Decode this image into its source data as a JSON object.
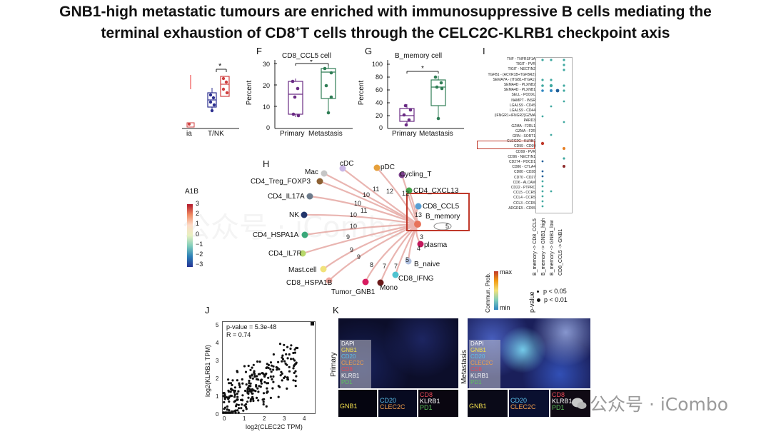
{
  "title": {
    "line1": "GNB1-high metastatic tumours are enriched with immunosuppressive B cells mediating the",
    "line2_a": "terminal exhaustion of CD8",
    "line2_sup": "+",
    "line2_b": "T cells through the CELC2C-KLRB1 checkpoint axis"
  },
  "panel_letters": {
    "F": "F",
    "G": "G",
    "H": "H",
    "I": "I",
    "J": "J",
    "K": "K"
  },
  "partial_left": {
    "star": "*",
    "xtick_cut": "ia",
    "xtick_tnk": "T/NK",
    "cut_label": "A1B",
    "colorbar_ticks": [
      "3",
      "2",
      "1",
      "0",
      "−1",
      "−2",
      "−3"
    ]
  },
  "panel_f": {
    "title": "CD8_CCL5 cell",
    "ylabel": "Percent",
    "yticks": [
      "30",
      "20",
      "10",
      "0"
    ],
    "xticks": [
      "Primary",
      "Metastasis"
    ],
    "star": "*"
  },
  "panel_g": {
    "title": "B_memory cell",
    "ylabel": "Percent",
    "yticks": [
      "100",
      "80",
      "60",
      "40",
      "20",
      "0"
    ],
    "xticks": [
      "Primary",
      "Metastasis"
    ],
    "star": "*"
  },
  "panel_h": {
    "nodes": [
      "cDC",
      "pDC",
      "Mac",
      "Cycling_T",
      "CD4_Treg_FOXP3",
      "CD4_CXCL13",
      "CD4_IL17A",
      "CD8_CCL5",
      "B_memory",
      "NK",
      "CD4_HSPA1A",
      "CD4_IL7R",
      "plasma",
      "B_naive",
      "Mast.cell",
      "CD8_IFNG",
      "CD8_HSPA1B",
      "Mono",
      "Tumor_GNB1"
    ],
    "edge_weights": [
      "10",
      "11",
      "12",
      "12",
      "10",
      "11",
      "10",
      "10",
      "13",
      "5",
      "3",
      "4",
      "5",
      "7",
      "7",
      "8",
      "9",
      "9",
      "9"
    ]
  },
  "panel_i": {
    "pairs": [
      "TNF - TNFRSF1A",
      "TIGIT - PVR",
      "TIGIT - NECTIN2",
      "TGFB1 - (ACVR1B+TGFBR2)",
      "SEMA7A - (ITGB1+ITGA1)",
      "SEMA4D - PLXNB2",
      "SEMA4D - PLXNB1",
      "SELL - PODXL",
      "NAMPT - INSR",
      "LGALS9 - CD45",
      "LGALS9 - CD44",
      "(IFNGR1+IFNGR2)GZMA",
      "PARD3",
      "GZMA - F2RL1",
      "GZMA - F2R",
      "GRN - SORT1",
      "CLEC2C - KLRB1",
      "CD99 - CD99",
      "CD99 - PVR",
      "CD96 - NECTIN1",
      "CD274 - PDCD1",
      "CD86 - CTLA4",
      "CD80 - CD28",
      "CD70 - CD27",
      "CD6 - ALCAM",
      "CD22 - PTPRC",
      "CCL5 - CCR5",
      "CCL4 - CCR5",
      "CCL3 - CCR5",
      "ADGRE5 - CD55"
    ],
    "columns": [
      "B_memory -> CD8_CCL5",
      "B_memory -> GNB1_high",
      "B_memory -> GNB1_low",
      "CD8_CCL5 -> GNB1"
    ],
    "legend_title": "Commun. Prob.",
    "legend_max": "max",
    "legend_min": "min",
    "pvalue_title": "p-value",
    "pvalue_items": [
      "p < 0.05",
      "p < 0.01"
    ]
  },
  "panel_j": {
    "annotation_p": "p-value = 5.3e-48",
    "annotation_r": "R = 0.74",
    "xlabel": "log2(CLEC2C TPM)",
    "ylabel": "log2(KLRB1 TPM)",
    "xticks": [
      "0",
      "1",
      "2",
      "3",
      "4"
    ],
    "yticks": [
      "0",
      "1",
      "2",
      "3",
      "4",
      "5"
    ]
  },
  "panel_k": {
    "row_primary": "Primary",
    "row_metastasis": "Metastasis",
    "legend": [
      "DAPI",
      "GNB1",
      "CD20",
      "CLEC2C",
      "CD8",
      "KLRB1",
      "PD1"
    ],
    "sub_gnb1": "GNB1",
    "sub_cd20": "CD20",
    "sub_clec2c": "CLEC2C",
    "sub_cd8": "CD8",
    "sub_klrb1": "KLRB1",
    "sub_pd1": "PD1"
  },
  "watermark": {
    "text": "公众号 · iCombo",
    "faint": "公众号 · iCombo"
  },
  "colors": {
    "primary_box": "#6a2b84",
    "metastasis_box": "#2f7d55",
    "tnk_blue": "#2c2f8f",
    "tnk_red": "#d04040",
    "highlight": "#c0392b"
  }
}
